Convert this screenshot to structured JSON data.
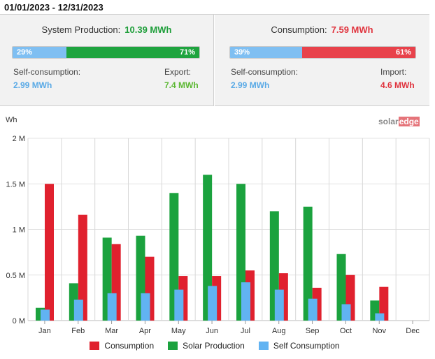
{
  "date_range": "01/01/2023 - 12/31/2023",
  "production": {
    "label": "System Production:",
    "value": "10.39 MWh",
    "self_pct": 29,
    "self_pct_label": "29%",
    "export_pct_label": "71%",
    "self_label": "Self-consumption:",
    "self_value": "2.99 MWh",
    "export_label": "Export:",
    "export_value": "7.4 MWh"
  },
  "consumption": {
    "label": "Consumption:",
    "value": "7.59 MWh",
    "self_pct": 39,
    "self_pct_label": "39%",
    "import_pct_label": "61%",
    "self_label": "Self-consumption:",
    "self_value": "2.99 MWh",
    "import_label": "Import:",
    "import_value": "4.6 MWh"
  },
  "logo": {
    "part1": "solar",
    "part2": "edge"
  },
  "colors": {
    "consumption": "#e0212e",
    "production": "#1ba23e",
    "self": "#61b3f2",
    "prod_text": "#1e9e3a",
    "cons_text": "#e0333d",
    "self_text": "#5aaae6",
    "export_text": "#5cb833",
    "bar_light": "#7fbff2",
    "bar_red": "#e8424b",
    "bar_green": "#1fa43f"
  },
  "chart_data": {
    "type": "bar",
    "ylabel": "Wh",
    "ylim": [
      0,
      2000000
    ],
    "yticks": [
      0,
      500000,
      1000000,
      1500000,
      2000000
    ],
    "ytick_labels": [
      "0 M",
      "0.5 M",
      "1 M",
      "1.5 M",
      "2 M"
    ],
    "grid": true,
    "legend_position": "bottom",
    "categories": [
      "Jan",
      "Feb",
      "Mar",
      "Apr",
      "May",
      "Jun",
      "Jul",
      "Aug",
      "Sep",
      "Oct",
      "Nov",
      "Dec"
    ],
    "series": [
      {
        "name": "Consumption",
        "values": [
          1500000,
          1160000,
          840000,
          700000,
          490000,
          490000,
          550000,
          520000,
          360000,
          500000,
          370000,
          0
        ]
      },
      {
        "name": "Solar Production",
        "values": [
          140000,
          410000,
          910000,
          930000,
          1400000,
          1600000,
          1500000,
          1200000,
          1250000,
          730000,
          220000,
          0
        ]
      },
      {
        "name": "Self Consumption",
        "values": [
          120000,
          230000,
          300000,
          300000,
          340000,
          380000,
          420000,
          340000,
          240000,
          180000,
          80000,
          0
        ]
      }
    ]
  }
}
